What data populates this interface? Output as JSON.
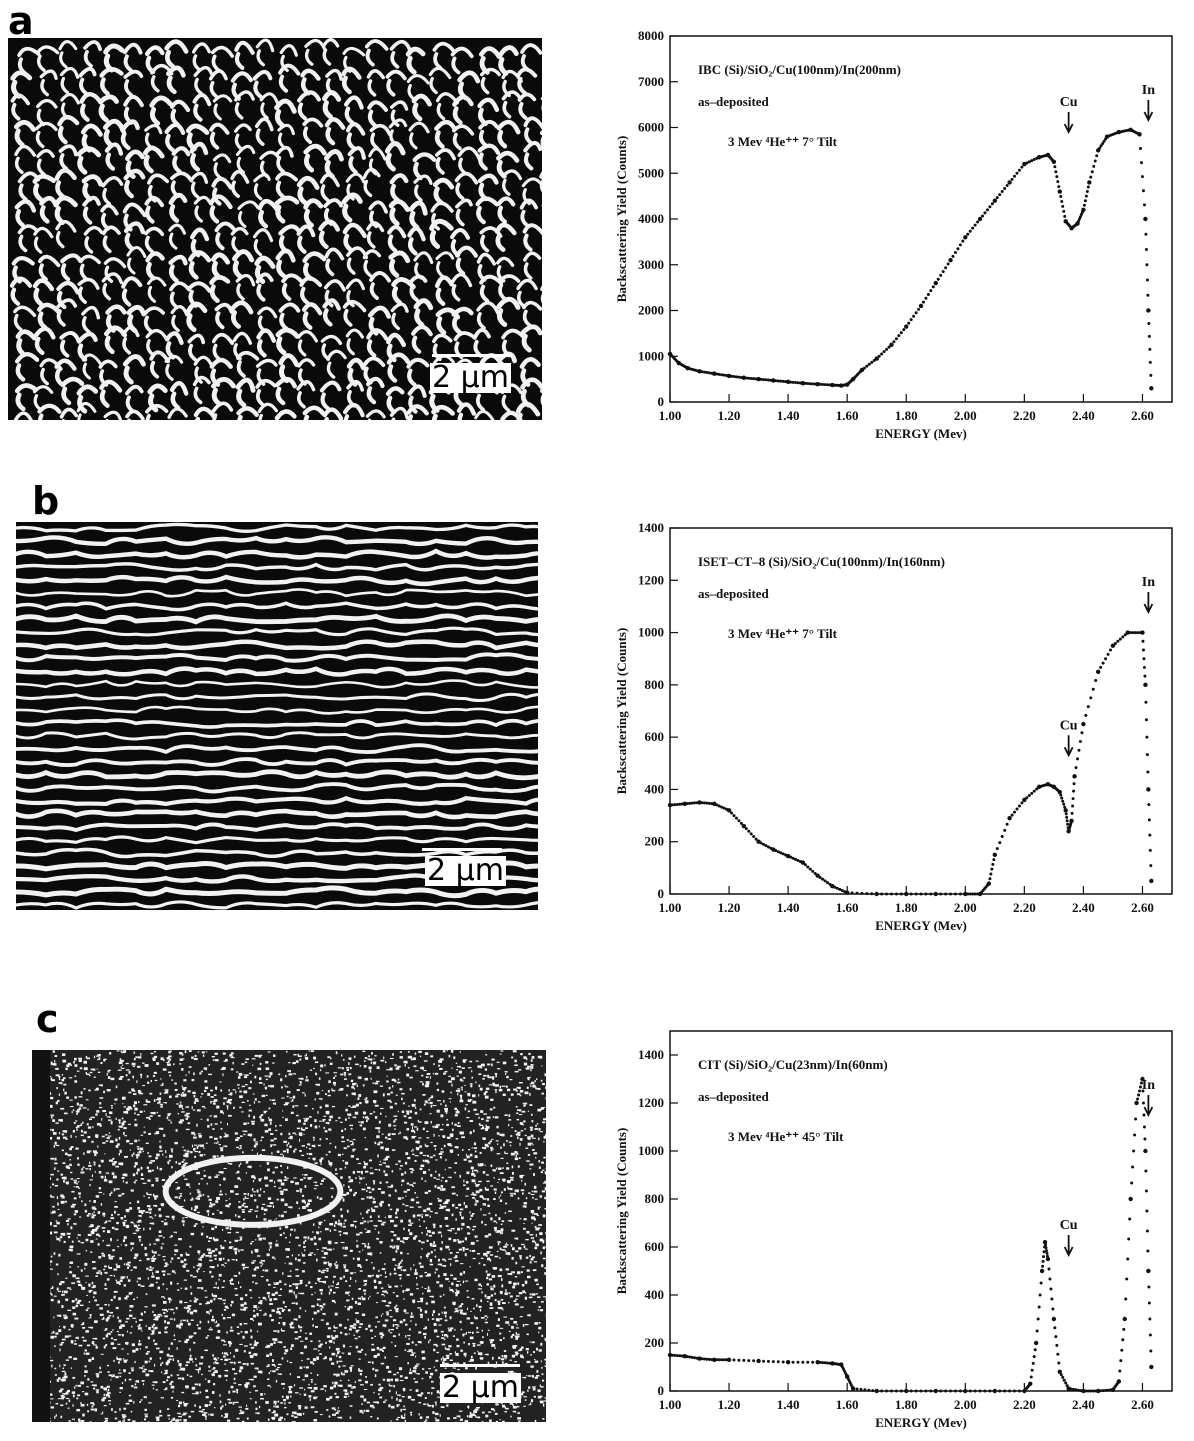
{
  "panels": [
    {
      "letter": "a",
      "scalebar_label": "2 μm",
      "chart_data": {
        "type": "scatter",
        "title": "IBC (Si)/SiO₂/Cu(100nm)/In(200nm)",
        "annotations": [
          "as–deposited",
          "3 Mev ⁴He⁺⁺   7° Tilt"
        ],
        "peak_labels": [
          {
            "label": "Cu",
            "x": 2.35
          },
          {
            "label": "In",
            "x": 2.62
          }
        ],
        "xlabel": "ENERGY (Mev)",
        "ylabel": "Backscattering Yield (Counts)",
        "xlim": [
          1.0,
          2.7
        ],
        "ylim": [
          0,
          8000
        ],
        "xticks": [
          1.0,
          1.2,
          1.4,
          1.6,
          1.8,
          2.0,
          2.2,
          2.4,
          2.6
        ],
        "xtick_labels": [
          "1.00",
          "1.20",
          "1.40",
          "1.60",
          "1.80",
          "2.00",
          "2.20",
          "2.40",
          "2.60"
        ],
        "yticks": [
          0,
          1000,
          2000,
          3000,
          4000,
          5000,
          6000,
          7000,
          8000
        ],
        "ytick_labels": [
          "0",
          "1000",
          "2000",
          "3000",
          "4000",
          "5000",
          "6000",
          "7000",
          "8000"
        ],
        "grid": false,
        "series": [
          {
            "points": [
              [
                1.0,
                1050
              ],
              [
                1.03,
                850
              ],
              [
                1.06,
                740
              ],
              [
                1.1,
                670
              ],
              [
                1.15,
                620
              ],
              [
                1.2,
                570
              ],
              [
                1.25,
                530
              ],
              [
                1.3,
                500
              ],
              [
                1.35,
                470
              ],
              [
                1.4,
                440
              ],
              [
                1.45,
                410
              ],
              [
                1.5,
                390
              ],
              [
                1.55,
                370
              ],
              [
                1.58,
                360
              ],
              [
                1.6,
                380
              ],
              [
                1.62,
                500
              ],
              [
                1.65,
                700
              ],
              [
                1.7,
                950
              ],
              [
                1.75,
                1250
              ],
              [
                1.8,
                1650
              ],
              [
                1.85,
                2100
              ],
              [
                1.9,
                2600
              ],
              [
                1.95,
                3100
              ],
              [
                2.0,
                3600
              ],
              [
                2.05,
                4000
              ],
              [
                2.1,
                4400
              ],
              [
                2.15,
                4800
              ],
              [
                2.2,
                5200
              ],
              [
                2.25,
                5350
              ],
              [
                2.28,
                5400
              ],
              [
                2.3,
                5250
              ],
              [
                2.32,
                4600
              ],
              [
                2.34,
                3950
              ],
              [
                2.36,
                3800
              ],
              [
                2.38,
                3900
              ],
              [
                2.4,
                4200
              ],
              [
                2.42,
                4800
              ],
              [
                2.45,
                5500
              ],
              [
                2.48,
                5800
              ],
              [
                2.52,
                5900
              ],
              [
                2.56,
                5950
              ],
              [
                2.59,
                5850
              ],
              [
                2.61,
                4000
              ],
              [
                2.62,
                2000
              ],
              [
                2.63,
                300
              ]
            ]
          }
        ]
      }
    },
    {
      "letter": "b",
      "scalebar_label": "2 μm",
      "chart_data": {
        "type": "scatter",
        "title": "ISET–CT–8 (Si)/SiO₂/Cu(100nm)/In(160nm)",
        "annotations": [
          "as–deposited",
          "3 Mev ⁴He⁺⁺   7° Tilt"
        ],
        "peak_labels": [
          {
            "label": "Cu",
            "x": 2.35
          },
          {
            "label": "In",
            "x": 2.62
          }
        ],
        "xlabel": "ENERGY (Mev)",
        "ylabel": "Backscattering Yield (Counts)",
        "xlim": [
          1.0,
          2.7
        ],
        "ylim": [
          0,
          1400
        ],
        "xticks": [
          1.0,
          1.2,
          1.4,
          1.6,
          1.8,
          2.0,
          2.2,
          2.4,
          2.6
        ],
        "xtick_labels": [
          "1.00",
          "1.20",
          "1.40",
          "1.60",
          "1.80",
          "2.00",
          "2.20",
          "2.40",
          "2.60"
        ],
        "yticks": [
          0,
          200,
          400,
          600,
          800,
          1000,
          1200,
          1400
        ],
        "ytick_labels": [
          "0",
          "200",
          "400",
          "600",
          "800",
          "1000",
          "1200",
          "1400"
        ],
        "grid": false,
        "series": [
          {
            "points": [
              [
                1.0,
                340
              ],
              [
                1.05,
                345
              ],
              [
                1.1,
                350
              ],
              [
                1.15,
                345
              ],
              [
                1.2,
                320
              ],
              [
                1.25,
                260
              ],
              [
                1.3,
                200
              ],
              [
                1.35,
                170
              ],
              [
                1.4,
                145
              ],
              [
                1.45,
                120
              ],
              [
                1.5,
                70
              ],
              [
                1.55,
                30
              ],
              [
                1.6,
                5
              ],
              [
                1.7,
                0
              ],
              [
                1.8,
                0
              ],
              [
                1.9,
                0
              ],
              [
                2.0,
                0
              ],
              [
                2.05,
                0
              ],
              [
                2.08,
                40
              ],
              [
                2.1,
                150
              ],
              [
                2.15,
                290
              ],
              [
                2.2,
                360
              ],
              [
                2.25,
                410
              ],
              [
                2.28,
                420
              ],
              [
                2.3,
                410
              ],
              [
                2.32,
                390
              ],
              [
                2.34,
                320
              ],
              [
                2.35,
                240
              ],
              [
                2.36,
                280
              ],
              [
                2.37,
                450
              ],
              [
                2.4,
                650
              ],
              [
                2.45,
                850
              ],
              [
                2.5,
                950
              ],
              [
                2.55,
                1000
              ],
              [
                2.6,
                1000
              ],
              [
                2.61,
                800
              ],
              [
                2.62,
                400
              ],
              [
                2.63,
                50
              ]
            ]
          }
        ]
      }
    },
    {
      "letter": "c",
      "scalebar_label": "2 μm",
      "chart_data": {
        "type": "scatter",
        "title": "CIT (Si)/SiO₂/Cu(23nm)/In(60nm)",
        "annotations": [
          "as–deposited",
          "3 Mev ⁴He⁺⁺   45° Tilt"
        ],
        "peak_labels": [
          {
            "label": "Cu",
            "x": 2.35
          },
          {
            "label": "In",
            "x": 2.62
          }
        ],
        "xlabel": "ENERGY (Mev)",
        "ylabel": "Backscattering Yield (Counts)",
        "xlim": [
          1.0,
          2.7
        ],
        "ylim": [
          0,
          1500
        ],
        "xticks": [
          1.0,
          1.2,
          1.4,
          1.6,
          1.8,
          2.0,
          2.2,
          2.4,
          2.6
        ],
        "xtick_labels": [
          "1.00",
          "1.20",
          "1.40",
          "1.60",
          "1.80",
          "2.00",
          "2.20",
          "2.40",
          "2.60"
        ],
        "yticks": [
          0,
          200,
          400,
          600,
          800,
          1000,
          1200,
          1400
        ],
        "ytick_labels": [
          "0",
          "200",
          "400",
          "600",
          "800",
          "1000",
          "1200",
          "1400"
        ],
        "grid": false,
        "series": [
          {
            "points": [
              [
                1.0,
                150
              ],
              [
                1.05,
                145
              ],
              [
                1.1,
                135
              ],
              [
                1.15,
                130
              ],
              [
                1.2,
                130
              ],
              [
                1.3,
                125
              ],
              [
                1.4,
                120
              ],
              [
                1.5,
                120
              ],
              [
                1.55,
                115
              ],
              [
                1.58,
                110
              ],
              [
                1.6,
                60
              ],
              [
                1.62,
                10
              ],
              [
                1.7,
                0
              ],
              [
                1.8,
                0
              ],
              [
                1.9,
                0
              ],
              [
                2.0,
                0
              ],
              [
                2.1,
                0
              ],
              [
                2.2,
                0
              ],
              [
                2.22,
                30
              ],
              [
                2.24,
                200
              ],
              [
                2.26,
                500
              ],
              [
                2.27,
                620
              ],
              [
                2.28,
                550
              ],
              [
                2.3,
                300
              ],
              [
                2.32,
                80
              ],
              [
                2.35,
                10
              ],
              [
                2.4,
                0
              ],
              [
                2.45,
                0
              ],
              [
                2.5,
                5
              ],
              [
                2.52,
                40
              ],
              [
                2.54,
                300
              ],
              [
                2.56,
                800
              ],
              [
                2.58,
                1200
              ],
              [
                2.6,
                1300
              ],
              [
                2.61,
                1000
              ],
              [
                2.62,
                500
              ],
              [
                2.63,
                100
              ]
            ]
          }
        ]
      }
    }
  ],
  "colors": {
    "ink": "#111111",
    "sem_dark": "#0a0a0a",
    "sem_light": "#f2f2f2"
  }
}
